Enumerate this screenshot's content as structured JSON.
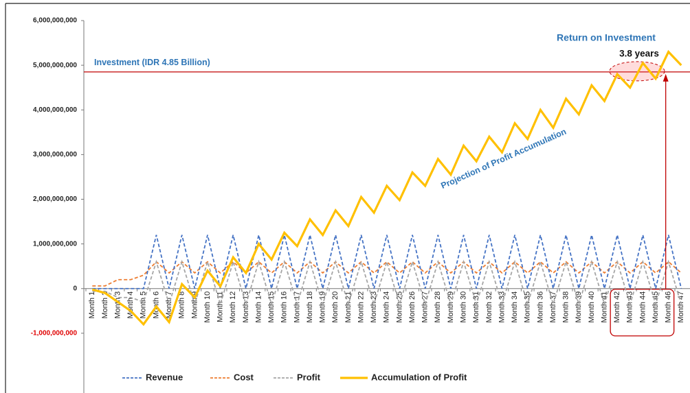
{
  "chart_data": {
    "type": "line",
    "categories": [
      "Month 1",
      "Month 2",
      "Month 3",
      "Month 4",
      "Month 5",
      "Month 6",
      "Month 7",
      "Month 8",
      "Month 9",
      "Month 10",
      "Month 11",
      "Month 12",
      "Month 13",
      "Month 14",
      "Month 15",
      "Month 16",
      "Month 17",
      "Month 18",
      "Month 19",
      "Month 20",
      "Month 21",
      "Month 22",
      "Month 23",
      "Month 24",
      "Month 25",
      "Month 26",
      "Month 27",
      "Month 28",
      "Month 29",
      "Month 30",
      "Month 31",
      "Month 32",
      "Month 33",
      "Month 34",
      "Month 35",
      "Month 36",
      "Month 37",
      "Month 38",
      "Month 39",
      "Month 40",
      "Month 41",
      "Month 42",
      "Month 43",
      "Month 44",
      "Month 45",
      "Month 46",
      "Month 47"
    ],
    "series": [
      {
        "name": "Revenue",
        "color": "#4472c4",
        "line_style": "dashed",
        "values": [
          0,
          0,
          0,
          0,
          0,
          1200000000,
          0,
          1200000000,
          0,
          1200000000,
          0,
          1200000000,
          0,
          1200000000,
          0,
          1200000000,
          0,
          1200000000,
          0,
          1200000000,
          0,
          1200000000,
          0,
          1200000000,
          0,
          1200000000,
          0,
          1200000000,
          0,
          1200000000,
          0,
          1200000000,
          0,
          1200000000,
          0,
          1200000000,
          0,
          1200000000,
          0,
          1200000000,
          0,
          1200000000,
          0,
          1200000000,
          0,
          1200000000,
          0
        ]
      },
      {
        "name": "Cost",
        "color": "#ed7d31",
        "line_style": "dashed",
        "values": [
          60000000,
          60000000,
          200000000,
          200000000,
          300000000,
          600000000,
          350000000,
          600000000,
          350000000,
          600000000,
          350000000,
          600000000,
          350000000,
          600000000,
          350000000,
          600000000,
          350000000,
          600000000,
          350000000,
          600000000,
          350000000,
          600000000,
          350000000,
          600000000,
          350000000,
          600000000,
          350000000,
          600000000,
          350000000,
          600000000,
          350000000,
          600000000,
          350000000,
          600000000,
          350000000,
          600000000,
          350000000,
          600000000,
          350000000,
          600000000,
          350000000,
          600000000,
          350000000,
          600000000,
          350000000,
          600000000,
          350000000
        ]
      },
      {
        "name": "Profit",
        "color": "#a5a5a5",
        "line_style": "dashed",
        "values": [
          -60000000,
          -60000000,
          -200000000,
          -200000000,
          -300000000,
          600000000,
          -350000000,
          600000000,
          -350000000,
          600000000,
          -350000000,
          600000000,
          -350000000,
          600000000,
          -350000000,
          600000000,
          -350000000,
          600000000,
          -350000000,
          600000000,
          -350000000,
          600000000,
          -350000000,
          600000000,
          -350000000,
          600000000,
          -350000000,
          600000000,
          -350000000,
          600000000,
          -350000000,
          600000000,
          -350000000,
          600000000,
          -350000000,
          600000000,
          -350000000,
          600000000,
          -350000000,
          600000000,
          -350000000,
          600000000,
          -350000000,
          600000000,
          -350000000,
          600000000,
          -350000000
        ]
      },
      {
        "name": "Accumulation of Profit",
        "color": "#ffc000",
        "line_style": "solid",
        "values": [
          -20000000,
          -100000000,
          -300000000,
          -500000000,
          -800000000,
          -400000000,
          -750000000,
          100000000,
          -200000000,
          400000000,
          50000000,
          700000000,
          350000000,
          1000000000,
          650000000,
          1250000000,
          950000000,
          1550000000,
          1200000000,
          1750000000,
          1400000000,
          2050000000,
          1700000000,
          2300000000,
          1980000000,
          2600000000,
          2300000000,
          2900000000,
          2550000000,
          3200000000,
          2850000000,
          3400000000,
          3050000000,
          3700000000,
          3350000000,
          4000000000,
          3600000000,
          4250000000,
          3900000000,
          4550000000,
          4200000000,
          4800000000,
          4500000000,
          5050000000,
          4700000000,
          5300000000,
          5000000000
        ]
      }
    ],
    "ylim": [
      -2000000000,
      6000000000
    ],
    "yticks": [
      {
        "value": 6000000000,
        "label": "6,000,000,000"
      },
      {
        "value": 5000000000,
        "label": "5,000,000,000"
      },
      {
        "value": 4000000000,
        "label": "4,000,000,000"
      },
      {
        "value": 3000000000,
        "label": "3,000,000,000"
      },
      {
        "value": 2000000000,
        "label": "2,000,000,000"
      },
      {
        "value": 1000000000,
        "label": "1,000,000,000"
      },
      0,
      {
        "value": -1000000000,
        "label": "-1,000,000,000"
      }
    ],
    "investment": {
      "value": 4850000000,
      "label": "Investment (IDR 4.85 Billion)"
    },
    "roi": {
      "title": "Return on Investment",
      "label": "3.8 years"
    },
    "projection_label": "Projection of Profit Accumulation",
    "legend": "bottom",
    "grid": false
  }
}
